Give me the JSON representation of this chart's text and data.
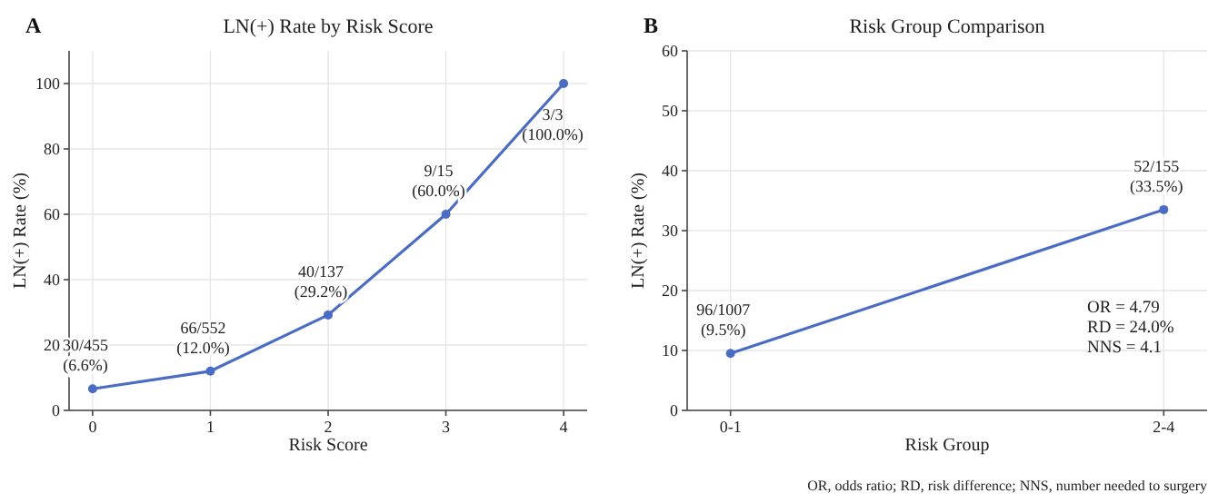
{
  "chart_data": [
    {
      "type": "line",
      "title": "LN(+) Rate by Risk Score",
      "xlabel": "Risk Score",
      "ylabel": "LN(+) Rate (%)",
      "x": [
        0,
        1,
        2,
        3,
        4
      ],
      "series": [
        {
          "color": "#4a6cc3",
          "values": [
            6.6,
            12.0,
            29.2,
            60.0,
            100.0
          ],
          "value_labels": [
            "30/455\n(6.6%)",
            "66/552\n(12.0%)",
            "40/137\n(29.2%)",
            "9/15\n(60.0%)",
            "3/3\n(100.0%)"
          ]
        }
      ],
      "xlim": [
        -0.2,
        4.2
      ],
      "xticks": [
        0,
        1,
        2,
        3,
        4
      ],
      "ylim": [
        0,
        110
      ],
      "yticks": [
        0,
        20,
        40,
        60,
        80,
        100
      ],
      "grid": true,
      "marker": "circle",
      "line_style": "solid",
      "annotations": [
        "A"
      ]
    },
    {
      "type": "line",
      "title": "Risk Group Comparison",
      "xlabel": "Risk Group",
      "ylabel": "LN(+) Rate (%)",
      "categories": [
        "0-1",
        "2-4"
      ],
      "series": [
        {
          "color": "#4a6cc3",
          "values": [
            9.5,
            33.5
          ],
          "value_labels": [
            "96/1007\n(9.5%)",
            "52/155\n(33.5%)"
          ]
        }
      ],
      "ylim": [
        0,
        60
      ],
      "yticks": [
        0,
        10,
        20,
        30,
        40,
        50,
        60
      ],
      "grid": true,
      "marker": "circle",
      "line_style": "solid",
      "annotations": [
        "B",
        "OR = 4.79\nRD = 24.0%\nNNS = 4.1",
        "OR, odds ratio; RD, risk difference; NNS, number needed to surgery"
      ]
    }
  ]
}
